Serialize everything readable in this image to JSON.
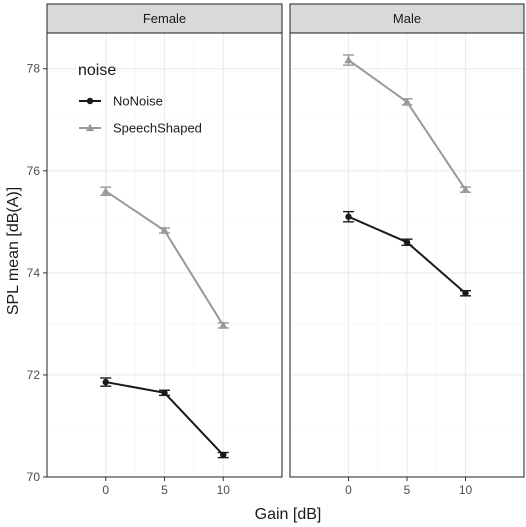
{
  "chart_data": {
    "type": "line",
    "xlabel": "Gain [dB]",
    "ylabel": "SPL mean [dB(A)]",
    "x": [
      0,
      5,
      10
    ],
    "xlim": [
      -5,
      15
    ],
    "ylim": [
      70,
      78.7
    ],
    "yticks": [
      70,
      72,
      74,
      76,
      78
    ],
    "grid": true,
    "legend": {
      "title": "noise",
      "placement": "top-left inside first panel",
      "entries": [
        {
          "name": "NoNoise",
          "color": "#1a1a1a",
          "marker": "circle"
        },
        {
          "name": "SpeechShaped",
          "color": "#999999",
          "marker": "triangle"
        }
      ]
    },
    "facets": [
      {
        "label": "Female",
        "series": [
          {
            "name": "NoNoise",
            "values": [
              71.86,
              71.65,
              70.43
            ],
            "errors": [
              0.08,
              0.05,
              0.05
            ]
          },
          {
            "name": "SpeechShaped",
            "values": [
              75.6,
              74.83,
              72.97
            ],
            "errors": [
              0.08,
              0.05,
              0.05
            ]
          }
        ]
      },
      {
        "label": "Male",
        "series": [
          {
            "name": "NoNoise",
            "values": [
              75.1,
              74.6,
              73.6
            ],
            "errors": [
              0.1,
              0.06,
              0.05
            ]
          },
          {
            "name": "SpeechShaped",
            "values": [
              78.17,
              77.35,
              75.63
            ],
            "errors": [
              0.1,
              0.06,
              0.05
            ]
          }
        ]
      }
    ]
  }
}
